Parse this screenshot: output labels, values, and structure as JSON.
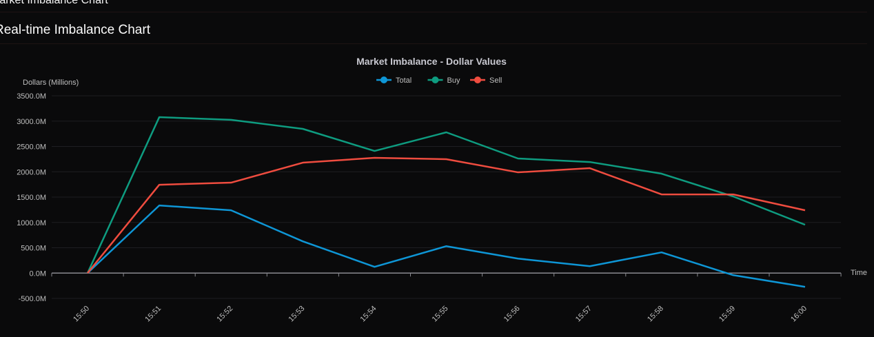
{
  "header": {
    "title": "Market Imbalance Chart"
  },
  "section": {
    "title": "Real-time Imbalance Chart"
  },
  "chart_data": {
    "type": "line",
    "title": "Market Imbalance - Dollar Values",
    "xlabel": "Time",
    "ylabel": "Dollars (Millions)",
    "ylim": [
      -500,
      3500
    ],
    "yticks": [
      -500,
      0,
      500,
      1000,
      1500,
      2000,
      2500,
      3000,
      3500
    ],
    "ytick_labels": [
      "-500.0M",
      "0.0M",
      "500.0M",
      "1000.0M",
      "1500.0M",
      "2000.0M",
      "2500.0M",
      "3000.0M",
      "3500.0M"
    ],
    "grid": true,
    "legend_position": "top",
    "categories": [
      "15:50",
      "15:51",
      "15:52",
      "15:53",
      "15:54",
      "15:55",
      "15:56",
      "15:57",
      "15:58",
      "15:59",
      "16:00"
    ],
    "series": [
      {
        "name": "Total",
        "color": "#0e96d6",
        "values": [
          0,
          1335,
          1240,
          627,
          123,
          531,
          286,
          136,
          409,
          -41,
          -272
        ]
      },
      {
        "name": "Buy",
        "color": "#0e9c80",
        "values": [
          0,
          3079,
          3025,
          2847,
          2411,
          2779,
          2262,
          2193,
          1962,
          1512,
          954
        ]
      },
      {
        "name": "Sell",
        "color": "#ef4c3f",
        "values": [
          0,
          1744,
          1785,
          2180,
          2275,
          2248,
          1989,
          2071,
          1553,
          1553,
          1240
        ]
      }
    ]
  }
}
